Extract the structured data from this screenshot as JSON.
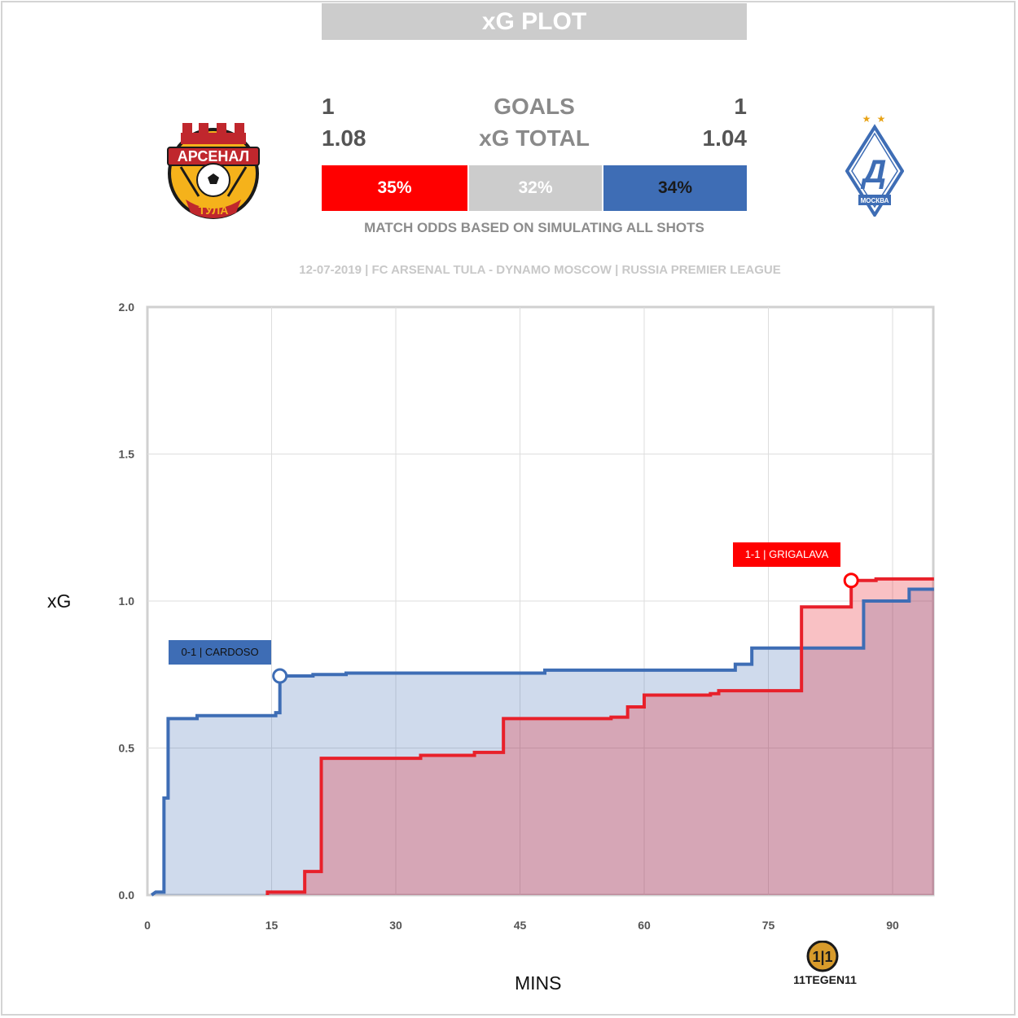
{
  "header": {
    "title": "xG PLOT"
  },
  "teams": {
    "home": {
      "logo_icon": "arsenal-tula-crest-icon",
      "goals": "1",
      "xg": "1.08",
      "color": "#e8202a"
    },
    "away": {
      "logo_icon": "dynamo-moscow-crest-icon",
      "goals": "1",
      "xg": "1.04",
      "color": "#3e6db5"
    }
  },
  "summary": {
    "goals_label": "GOALS",
    "xg_label": "xG TOTAL"
  },
  "odds": {
    "home_pct": "35%",
    "draw_pct": "32%",
    "away_pct": "34%",
    "home_color": "#ff0000",
    "draw_color": "#cccccc",
    "away_color": "#3e6db5",
    "note": "MATCH ODDS BASED ON SIMULATING ALL SHOTS"
  },
  "match_info": "12-07-2019 | FC ARSENAL TULA - DYNAMO MOSCOW | RUSSIA PREMIER LEAGUE",
  "brand": {
    "icon": "11tegen11-logo-icon",
    "text": "11TEGEN11"
  },
  "chart_data": {
    "type": "line",
    "title": "",
    "xlabel": "MINS",
    "ylabel": "xG",
    "xlim": [
      0,
      95
    ],
    "ylim": [
      0,
      2.0
    ],
    "x_ticks": [
      "0",
      "15",
      "30",
      "45",
      "60",
      "75",
      "90"
    ],
    "y_ticks": [
      "0.0",
      "0.5",
      "1.0",
      "1.5",
      "2.0"
    ],
    "grid": true,
    "step": true,
    "series": [
      {
        "team": "away",
        "color": "#3e6db5",
        "points": [
          [
            0.5,
            0.0
          ],
          [
            1.0,
            0.01
          ],
          [
            2.0,
            0.01
          ],
          [
            2.0,
            0.33
          ],
          [
            2.5,
            0.33
          ],
          [
            2.5,
            0.6
          ],
          [
            6.0,
            0.6
          ],
          [
            6.0,
            0.61
          ],
          [
            15.5,
            0.61
          ],
          [
            15.5,
            0.62
          ],
          [
            16.0,
            0.62
          ],
          [
            16.0,
            0.745
          ],
          [
            20.0,
            0.745
          ],
          [
            20.0,
            0.75
          ],
          [
            24.0,
            0.75
          ],
          [
            24.0,
            0.755
          ],
          [
            48.0,
            0.755
          ],
          [
            48.0,
            0.765
          ],
          [
            71.0,
            0.765
          ],
          [
            71.0,
            0.785
          ],
          [
            73.0,
            0.785
          ],
          [
            73.0,
            0.84
          ],
          [
            86.5,
            0.84
          ],
          [
            86.5,
            1.0
          ],
          [
            92.0,
            1.0
          ],
          [
            92.0,
            1.04
          ],
          [
            95.0,
            1.04
          ]
        ]
      },
      {
        "team": "home",
        "color": "#e8202a",
        "points": [
          [
            14.5,
            0.0
          ],
          [
            14.5,
            0.01
          ],
          [
            19.0,
            0.01
          ],
          [
            19.0,
            0.08
          ],
          [
            21.0,
            0.08
          ],
          [
            21.0,
            0.465
          ],
          [
            33.0,
            0.465
          ],
          [
            33.0,
            0.475
          ],
          [
            39.5,
            0.475
          ],
          [
            39.5,
            0.485
          ],
          [
            43.0,
            0.485
          ],
          [
            43.0,
            0.6
          ],
          [
            56.0,
            0.6
          ],
          [
            56.0,
            0.605
          ],
          [
            58.0,
            0.605
          ],
          [
            58.0,
            0.64
          ],
          [
            60.0,
            0.64
          ],
          [
            60.0,
            0.68
          ],
          [
            68.0,
            0.68
          ],
          [
            68.0,
            0.685
          ],
          [
            69.0,
            0.685
          ],
          [
            69.0,
            0.695
          ],
          [
            79.0,
            0.695
          ],
          [
            79.0,
            0.98
          ],
          [
            85.0,
            0.98
          ],
          [
            85.0,
            1.07
          ],
          [
            88.0,
            1.07
          ],
          [
            88.0,
            1.075
          ],
          [
            95.0,
            1.075
          ]
        ]
      }
    ],
    "annotations": [
      {
        "text": "0-1 | CARDOSO",
        "x": 16.0,
        "y": 0.745,
        "color": "#3e6db5"
      },
      {
        "text": "1-1 | GRIGALAVA",
        "x": 85.0,
        "y": 1.07,
        "color": "#ff0000"
      }
    ]
  }
}
